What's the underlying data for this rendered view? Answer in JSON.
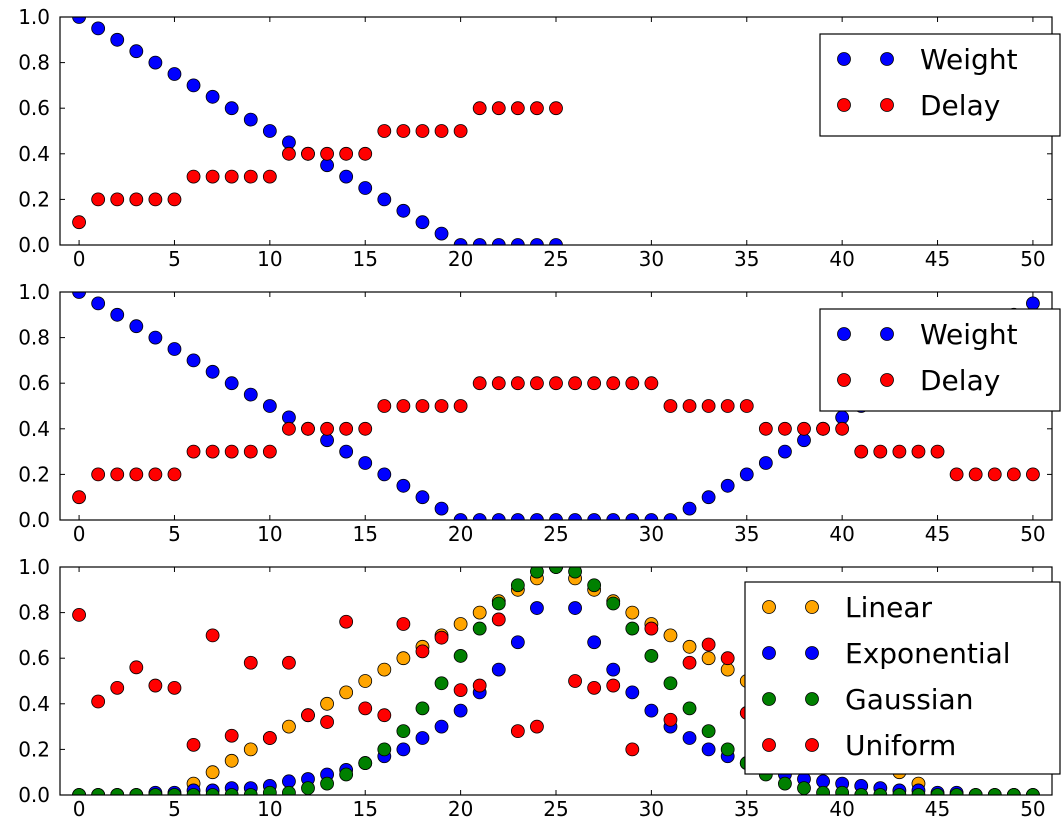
{
  "chart_data": [
    {
      "type": "scatter",
      "xlim": [
        -1,
        51
      ],
      "ylim": [
        0,
        1
      ],
      "x_ticks": [
        "0",
        "5",
        "10",
        "15",
        "20",
        "25",
        "30",
        "35",
        "40",
        "45",
        "50"
      ],
      "y_ticks": [
        "0.0",
        "0.2",
        "0.4",
        "0.6",
        "0.8",
        "1.0"
      ],
      "legend_position": "top-right",
      "series": [
        {
          "name": "Weight",
          "color": "#0000ff",
          "x": [
            0,
            1,
            2,
            3,
            4,
            5,
            6,
            7,
            8,
            9,
            10,
            11,
            12,
            13,
            14,
            15,
            16,
            17,
            18,
            19,
            20,
            21,
            22,
            23,
            24,
            25
          ],
          "y": [
            1.0,
            0.95,
            0.9,
            0.85,
            0.8,
            0.75,
            0.7,
            0.65,
            0.6,
            0.55,
            0.5,
            0.45,
            0.4,
            0.35,
            0.3,
            0.25,
            0.2,
            0.15,
            0.1,
            0.05,
            0.0,
            0.0,
            0.0,
            0.0,
            0.0,
            0.0
          ]
        },
        {
          "name": "Delay",
          "color": "#ff0000",
          "x": [
            0,
            1,
            2,
            3,
            4,
            5,
            6,
            7,
            8,
            9,
            10,
            11,
            12,
            13,
            14,
            15,
            16,
            17,
            18,
            19,
            20,
            21,
            22,
            23,
            24,
            25
          ],
          "y": [
            0.1,
            0.2,
            0.2,
            0.2,
            0.2,
            0.2,
            0.3,
            0.3,
            0.3,
            0.3,
            0.3,
            0.4,
            0.4,
            0.4,
            0.4,
            0.4,
            0.5,
            0.5,
            0.5,
            0.5,
            0.5,
            0.6,
            0.6,
            0.6,
            0.6,
            0.6
          ]
        }
      ]
    },
    {
      "type": "scatter",
      "xlim": [
        -1,
        51
      ],
      "ylim": [
        0,
        1
      ],
      "x_ticks": [
        "0",
        "5",
        "10",
        "15",
        "20",
        "25",
        "30",
        "35",
        "40",
        "45",
        "50"
      ],
      "y_ticks": [
        "0.0",
        "0.2",
        "0.4",
        "0.6",
        "0.8",
        "1.0"
      ],
      "legend_position": "top-right",
      "series": [
        {
          "name": "Weight",
          "color": "#0000ff",
          "x": [
            0,
            1,
            2,
            3,
            4,
            5,
            6,
            7,
            8,
            9,
            10,
            11,
            12,
            13,
            14,
            15,
            16,
            17,
            18,
            19,
            20,
            21,
            22,
            23,
            24,
            25,
            26,
            27,
            28,
            29,
            30,
            31,
            32,
            33,
            34,
            35,
            36,
            37,
            38,
            39,
            40,
            41,
            42,
            43,
            44,
            45,
            46,
            47,
            48,
            49,
            50
          ],
          "y": [
            1.0,
            0.95,
            0.9,
            0.85,
            0.8,
            0.75,
            0.7,
            0.65,
            0.6,
            0.55,
            0.5,
            0.45,
            0.4,
            0.35,
            0.3,
            0.25,
            0.2,
            0.15,
            0.1,
            0.05,
            0.0,
            0.0,
            0.0,
            0.0,
            0.0,
            0.0,
            0.0,
            0.0,
            0.0,
            0.0,
            0.0,
            0.0,
            0.05,
            0.1,
            0.15,
            0.2,
            0.25,
            0.3,
            0.35,
            0.4,
            0.45,
            0.5,
            0.55,
            0.6,
            0.65,
            0.7,
            0.75,
            0.8,
            0.85,
            0.9,
            0.95
          ]
        },
        {
          "name": "Delay",
          "color": "#ff0000",
          "x": [
            0,
            1,
            2,
            3,
            4,
            5,
            6,
            7,
            8,
            9,
            10,
            11,
            12,
            13,
            14,
            15,
            16,
            17,
            18,
            19,
            20,
            21,
            22,
            23,
            24,
            25,
            26,
            27,
            28,
            29,
            30,
            31,
            32,
            33,
            34,
            35,
            36,
            37,
            38,
            39,
            40,
            41,
            42,
            43,
            44,
            45,
            46,
            47,
            48,
            49,
            50
          ],
          "y": [
            0.1,
            0.2,
            0.2,
            0.2,
            0.2,
            0.2,
            0.3,
            0.3,
            0.3,
            0.3,
            0.3,
            0.4,
            0.4,
            0.4,
            0.4,
            0.4,
            0.5,
            0.5,
            0.5,
            0.5,
            0.5,
            0.6,
            0.6,
            0.6,
            0.6,
            0.6,
            0.6,
            0.6,
            0.6,
            0.6,
            0.6,
            0.5,
            0.5,
            0.5,
            0.5,
            0.5,
            0.4,
            0.4,
            0.4,
            0.4,
            0.4,
            0.3,
            0.3,
            0.3,
            0.3,
            0.3,
            0.2,
            0.2,
            0.2,
            0.2,
            0.2
          ]
        }
      ]
    },
    {
      "type": "scatter",
      "xlim": [
        -1,
        51
      ],
      "ylim": [
        0,
        1
      ],
      "x_ticks": [
        "0",
        "5",
        "10",
        "15",
        "20",
        "25",
        "30",
        "35",
        "40",
        "45",
        "50"
      ],
      "y_ticks": [
        "0.0",
        "0.2",
        "0.4",
        "0.6",
        "0.8",
        "1.0"
      ],
      "legend_position": "top-right",
      "series": [
        {
          "name": "Linear",
          "color": "#ffa500",
          "x": [
            0,
            1,
            2,
            3,
            4,
            5,
            6,
            7,
            8,
            9,
            10,
            11,
            12,
            13,
            14,
            15,
            16,
            17,
            18,
            19,
            20,
            21,
            22,
            23,
            24,
            25,
            26,
            27,
            28,
            29,
            30,
            31,
            32,
            33,
            34,
            35,
            36,
            37,
            38,
            39,
            40,
            41,
            42,
            43,
            44,
            45,
            46,
            47,
            48,
            49,
            50
          ],
          "y": [
            0,
            0,
            0,
            0,
            0,
            0,
            0.05,
            0.1,
            0.15,
            0.2,
            0.25,
            0.3,
            0.35,
            0.4,
            0.45,
            0.5,
            0.55,
            0.6,
            0.65,
            0.7,
            0.75,
            0.8,
            0.85,
            0.9,
            0.95,
            1.0,
            0.95,
            0.9,
            0.85,
            0.8,
            0.75,
            0.7,
            0.65,
            0.6,
            0.55,
            0.5,
            0.45,
            0.4,
            0.35,
            0.3,
            0.25,
            0.2,
            0.15,
            0.1,
            0.05,
            0,
            0,
            0,
            0,
            0,
            0
          ]
        },
        {
          "name": "Exponential",
          "color": "#0000ff",
          "x": [
            0,
            1,
            2,
            3,
            4,
            5,
            6,
            7,
            8,
            9,
            10,
            11,
            12,
            13,
            14,
            15,
            16,
            17,
            18,
            19,
            20,
            21,
            22,
            23,
            24,
            25,
            26,
            27,
            28,
            29,
            30,
            31,
            32,
            33,
            34,
            35,
            36,
            37,
            38,
            39,
            40,
            41,
            42,
            43,
            44,
            45,
            46,
            47,
            48,
            49,
            50
          ],
          "y": [
            0.0,
            0.0,
            0.0,
            0.0,
            0.01,
            0.01,
            0.02,
            0.02,
            0.03,
            0.03,
            0.04,
            0.06,
            0.07,
            0.09,
            0.11,
            0.14,
            0.17,
            0.2,
            0.25,
            0.3,
            0.37,
            0.45,
            0.55,
            0.67,
            0.82,
            1.0,
            0.82,
            0.67,
            0.55,
            0.45,
            0.37,
            0.3,
            0.25,
            0.2,
            0.17,
            0.14,
            0.11,
            0.09,
            0.07,
            0.06,
            0.05,
            0.04,
            0.03,
            0.02,
            0.02,
            0.01,
            0.01,
            0.0,
            0.0,
            0.0,
            0.0
          ]
        },
        {
          "name": "Gaussian",
          "color": "#008000",
          "x": [
            0,
            1,
            2,
            3,
            4,
            5,
            6,
            7,
            8,
            9,
            10,
            11,
            12,
            13,
            14,
            15,
            16,
            17,
            18,
            19,
            20,
            21,
            22,
            23,
            24,
            25,
            26,
            27,
            28,
            29,
            30,
            31,
            32,
            33,
            34,
            35,
            36,
            37,
            38,
            39,
            40,
            41,
            42,
            43,
            44,
            45,
            46,
            47,
            48,
            49,
            50
          ],
          "y": [
            0.0,
            0.0,
            0.0,
            0.0,
            0.0,
            0.0,
            0.0,
            0.0,
            0.0,
            0.0,
            0.01,
            0.01,
            0.03,
            0.05,
            0.09,
            0.14,
            0.2,
            0.28,
            0.38,
            0.49,
            0.61,
            0.73,
            0.84,
            0.92,
            0.98,
            1.0,
            0.98,
            0.92,
            0.84,
            0.73,
            0.61,
            0.49,
            0.38,
            0.28,
            0.2,
            0.14,
            0.09,
            0.05,
            0.03,
            0.01,
            0.01,
            0.0,
            0.0,
            0.0,
            0.0,
            0.0,
            0.0,
            0.0,
            0.0,
            0.0,
            0.0
          ]
        },
        {
          "name": "Uniform",
          "color": "#ff0000",
          "x": [
            0,
            1,
            2,
            3,
            4,
            5,
            6,
            7,
            8,
            9,
            10,
            11,
            12,
            13,
            14,
            15,
            16,
            17,
            18,
            19,
            20,
            21,
            22,
            23,
            24,
            26,
            27,
            28,
            29,
            30,
            31,
            32,
            33,
            34,
            35,
            36,
            37,
            38,
            39,
            40,
            50
          ],
          "y": [
            0.79,
            0.41,
            0.47,
            0.56,
            0.48,
            0.47,
            0.22,
            0.7,
            0.26,
            0.58,
            0.25,
            0.58,
            0.35,
            0.32,
            0.76,
            0.38,
            0.35,
            0.75,
            0.63,
            0.69,
            0.46,
            0.48,
            0.77,
            0.28,
            0.3,
            0.5,
            0.47,
            0.48,
            0.2,
            0.73,
            0.33,
            0.58,
            0.66,
            0.6,
            0.36,
            0.72,
            0.57,
            0.55,
            0.42,
            0.4,
            0.75
          ]
        }
      ]
    }
  ]
}
